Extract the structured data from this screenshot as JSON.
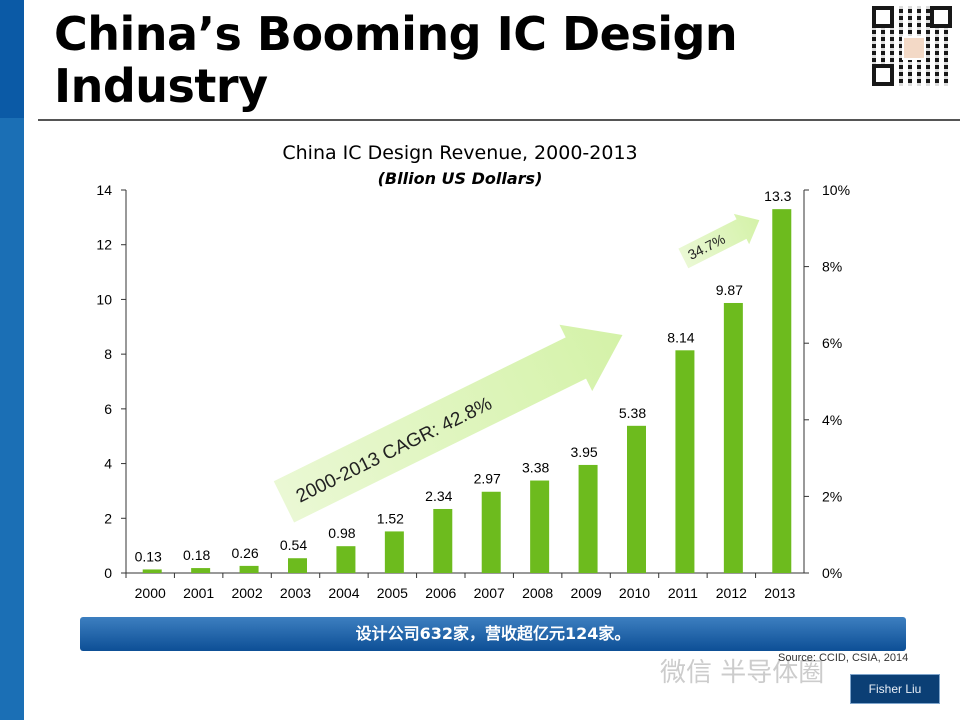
{
  "slide": {
    "title": "China’s Booming  IC Design\nIndustry",
    "banner": "设计公司632家，营收超亿元124家。",
    "source": "Source: CCID, CSIA, 2014",
    "watermark": "微信  半导体圈",
    "author": "Fisher Liu"
  },
  "colors": {
    "bar": "#6dbb1e",
    "arrow": "#d4f2a8",
    "sidebar": "#1b6fb5",
    "banner": "#1a5ea6"
  },
  "chart_data": {
    "type": "bar",
    "title": "China IC Design Revenue, 2000-2013",
    "subtitle": "(Bllion US Dollars)",
    "categories": [
      "2000",
      "2001",
      "2002",
      "2003",
      "2004",
      "2005",
      "2006",
      "2007",
      "2008",
      "2009",
      "2010",
      "2011",
      "2012",
      "2013"
    ],
    "values": [
      0.13,
      0.18,
      0.26,
      0.54,
      0.98,
      1.52,
      2.34,
      2.97,
      3.38,
      3.95,
      5.38,
      8.14,
      9.87,
      13.3
    ],
    "data_labels": [
      "0.13",
      "0.18",
      "0.26",
      "0.54",
      "0.98",
      "1.52",
      "2.34",
      "2.97",
      "3.38",
      "3.95",
      "5.38",
      "8.14",
      "9.87",
      "13.3"
    ],
    "ylim": [
      0,
      14
    ],
    "y_ticks": [
      "0",
      "2",
      "4",
      "6",
      "8",
      "10",
      "12",
      "14"
    ],
    "y2lim": [
      0,
      10
    ],
    "y2_ticks": [
      "0%",
      "2%",
      "4%",
      "6%",
      "8%",
      "10%"
    ],
    "grid": false,
    "annotations": [
      {
        "text": "2000-2013 CAGR: 42.8%",
        "from_year": "2004",
        "to_year": "2010"
      },
      {
        "text": "34.7%",
        "from_year": "2012",
        "to_year": "2013"
      }
    ]
  }
}
